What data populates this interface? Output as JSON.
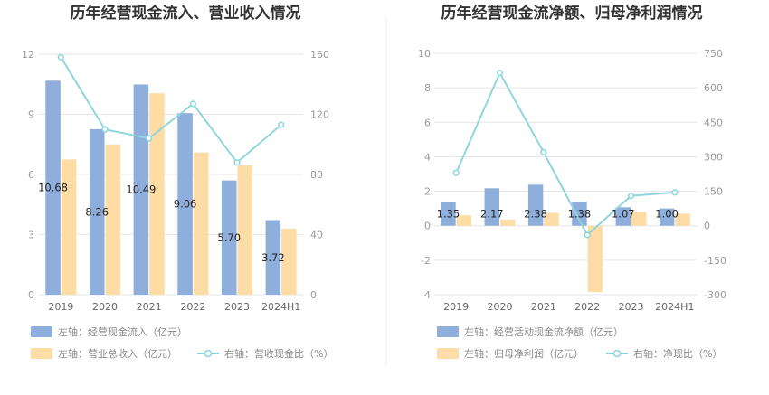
{
  "colors": {
    "bar_primary": "#8eaedc",
    "bar_secondary": "#fedca5",
    "line": "#8fd6dc",
    "grid": "#e6e6e6"
  },
  "chart_data": [
    {
      "type": "bar",
      "title": "历年经营现金流入、营业收入情况",
      "categories": [
        "2019",
        "2020",
        "2021",
        "2022",
        "2023",
        "2024H1"
      ],
      "y_left": {
        "ticks": [
          0,
          3,
          6,
          9,
          12
        ],
        "ylim": [
          0,
          12
        ]
      },
      "y_right": {
        "ticks": [
          0,
          40,
          80,
          120,
          160
        ],
        "ylim": [
          0,
          160
        ]
      },
      "series": [
        {
          "name": "左轴：经营现金流入（亿元）",
          "axis": "left",
          "kind": "bar",
          "color": "#8eaedc",
          "values": [
            10.68,
            8.26,
            10.49,
            9.06,
            5.7,
            3.72
          ],
          "labels": [
            "10.68",
            "8.26",
            "10.49",
            "9.06",
            "5.70",
            "3.72"
          ]
        },
        {
          "name": "左轴：营业总收入（亿元）",
          "axis": "left",
          "kind": "bar",
          "color": "#fedca5",
          "values": [
            6.75,
            7.5,
            10.05,
            7.1,
            6.45,
            3.3
          ]
        },
        {
          "name": "右轴：营收现金比（%）",
          "axis": "right",
          "kind": "line",
          "color": "#8fd6dc",
          "values": [
            158,
            110,
            104,
            127,
            88,
            113
          ]
        }
      ]
    },
    {
      "type": "bar",
      "title": "历年经营现金流净额、归母净利润情况",
      "categories": [
        "2019",
        "2020",
        "2021",
        "2022",
        "2023",
        "2024H1"
      ],
      "y_left": {
        "ticks": [
          -4,
          -2,
          0,
          2,
          4,
          6,
          8,
          10
        ],
        "ylim": [
          -4,
          10
        ]
      },
      "y_right": {
        "ticks": [
          -300,
          -150,
          0,
          150,
          300,
          450,
          600,
          750
        ],
        "ylim": [
          -300,
          750
        ]
      },
      "series": [
        {
          "name": "左轴：经营活动现金流净额（亿元）",
          "axis": "left",
          "kind": "bar",
          "color": "#8eaedc",
          "values": [
            1.35,
            2.17,
            2.38,
            1.38,
            1.07,
            1.0
          ],
          "labels": [
            "1.35",
            "2.17",
            "2.38",
            "1.38",
            "1.07",
            "1.00"
          ]
        },
        {
          "name": "左轴：归母净利润（亿元）",
          "axis": "left",
          "kind": "bar",
          "color": "#fedca5",
          "values": [
            0.6,
            0.35,
            0.75,
            -3.85,
            0.8,
            0.7
          ]
        },
        {
          "name": "右轴：净现比（%）",
          "axis": "right",
          "kind": "line",
          "color": "#8fd6dc",
          "values": [
            230,
            665,
            320,
            -40,
            130,
            145
          ]
        }
      ]
    }
  ]
}
